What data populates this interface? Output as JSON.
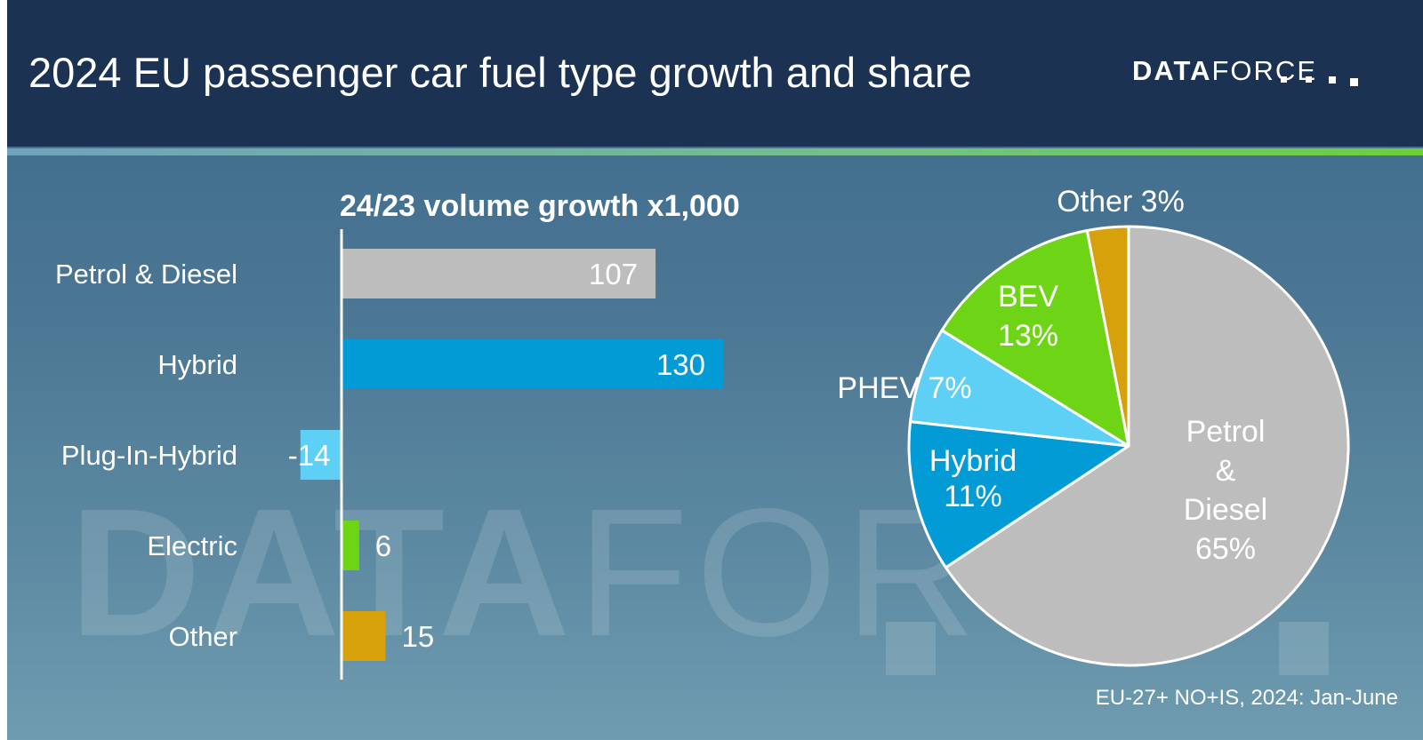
{
  "header": {
    "title": "2024 EU passenger car fuel type growth and share",
    "logo_bold": "DATA",
    "logo_light": "FORCE"
  },
  "watermark": {
    "bold": "DATA",
    "light": "FORC"
  },
  "footnote": "EU-27+ NO+IS, 2024: Jan-June",
  "colors": {
    "header_bg": "#1c3253",
    "petrol_diesel": "#bdbdbd",
    "hybrid": "#039bd6",
    "phev": "#5fd0f5",
    "bev": "#6ed516",
    "other": "#d6a10a"
  },
  "chart_data": [
    {
      "type": "bar",
      "orientation": "horizontal",
      "title": "24/23 volume growth x1,000",
      "categories": [
        "Petrol & Diesel",
        "Hybrid",
        "Plug-In-Hybrid",
        "Electric",
        "Other"
      ],
      "values": [
        107,
        130,
        -14,
        6,
        15
      ],
      "value_labels": [
        "107",
        "130",
        "-14",
        "6",
        "15"
      ],
      "colors": [
        "#bdbdbd",
        "#039bd6",
        "#5fd0f5",
        "#6ed516",
        "#d6a10a"
      ],
      "grid": false
    },
    {
      "type": "pie",
      "slices": [
        {
          "name": "Petrol & Diesel",
          "label_lines": [
            "Petrol",
            "&",
            "Diesel",
            "65%"
          ],
          "value": 65,
          "color": "#bdbdbd"
        },
        {
          "name": "Hybrid",
          "label_lines": [
            "Hybrid",
            "11%"
          ],
          "value": 11,
          "color": "#039bd6"
        },
        {
          "name": "PHEV",
          "label_lines": [
            "PHEV 7%"
          ],
          "value": 7,
          "color": "#5fd0f5"
        },
        {
          "name": "BEV",
          "label_lines": [
            "BEV",
            "13%"
          ],
          "value": 13,
          "color": "#6ed516"
        },
        {
          "name": "Other",
          "label_lines": [
            "Other 3%"
          ],
          "value": 3,
          "color": "#d6a10a"
        }
      ]
    }
  ]
}
